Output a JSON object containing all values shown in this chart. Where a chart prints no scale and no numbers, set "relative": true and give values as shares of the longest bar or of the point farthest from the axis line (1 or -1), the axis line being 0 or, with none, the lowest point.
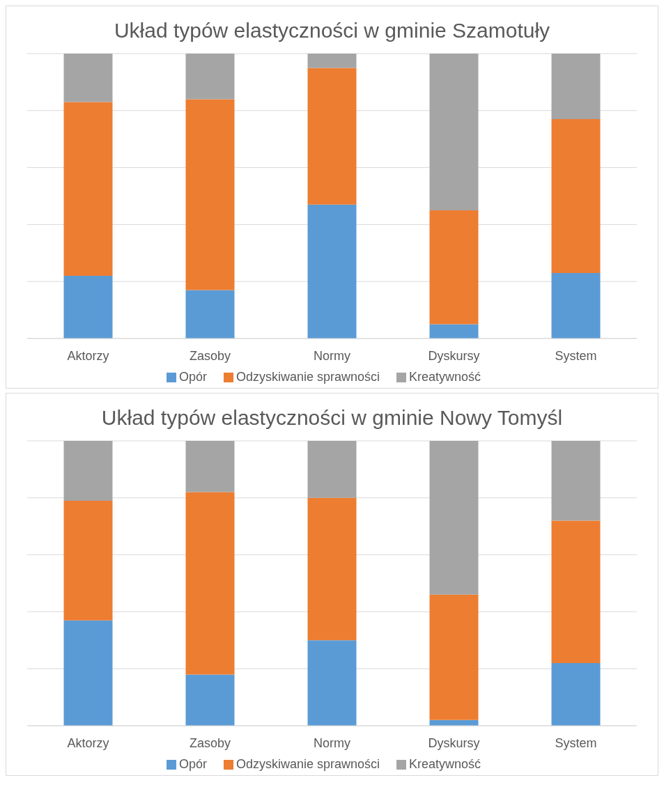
{
  "chart_data": [
    {
      "type": "bar",
      "title": "Układ typów elastyczności w gminie Szamotuły",
      "categories": [
        "Aktorzy",
        "Zasoby",
        "Normy",
        "Dyskursy",
        "System"
      ],
      "stacked": true,
      "relative": true,
      "grid": "y",
      "legend": "bottom",
      "series": [
        {
          "name": "Opór",
          "color": "#5b9bd5",
          "values": [
            0.22,
            0.17,
            0.47,
            0.05,
            0.23
          ]
        },
        {
          "name": "Odzyskiwanie sprawności",
          "color": "#ed7d31",
          "values": [
            0.61,
            0.67,
            0.48,
            0.4,
            0.54
          ]
        },
        {
          "name": "Kreatywność",
          "color": "#a5a5a5",
          "values": [
            0.17,
            0.16,
            0.05,
            0.55,
            0.23
          ]
        }
      ]
    },
    {
      "type": "bar",
      "title": "Układ typów elastyczności w gminie Nowy Tomyśl",
      "categories": [
        "Aktorzy",
        "Zasoby",
        "Normy",
        "Dyskursy",
        "System"
      ],
      "stacked": true,
      "relative": true,
      "grid": "y",
      "legend": "bottom",
      "series": [
        {
          "name": "Opór",
          "color": "#5b9bd5",
          "values": [
            0.37,
            0.18,
            0.3,
            0.02,
            0.22
          ]
        },
        {
          "name": "Odzyskiwanie sprawności",
          "color": "#ed7d31",
          "values": [
            0.42,
            0.64,
            0.5,
            0.44,
            0.5
          ]
        },
        {
          "name": "Kreatywność",
          "color": "#a5a5a5",
          "values": [
            0.21,
            0.18,
            0.2,
            0.54,
            0.28
          ]
        }
      ]
    }
  ]
}
